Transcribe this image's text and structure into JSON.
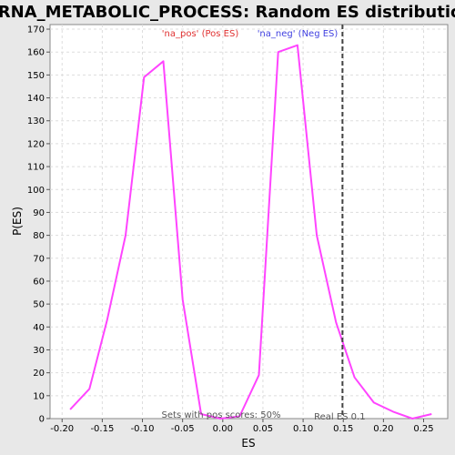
{
  "chart_data": {
    "type": "line",
    "title": "MRNA_METABOLIC_PROCESS: Random ES distribution",
    "xlabel": "ES",
    "ylabel": "P(ES)",
    "xlim": [
      -0.215,
      0.28
    ],
    "ylim": [
      0,
      172
    ],
    "x_ticks": [
      -0.2,
      -0.15,
      -0.1,
      -0.05,
      0.0,
      0.05,
      0.1,
      0.15,
      0.2,
      0.25
    ],
    "x_tick_labels": [
      "-0.20",
      "-0.15",
      "-0.10",
      "-0.05",
      "0.00",
      "0.05",
      "0.10",
      "0.15",
      "0.20",
      "0.25"
    ],
    "y_ticks": [
      0,
      10,
      20,
      30,
      40,
      50,
      60,
      70,
      80,
      90,
      100,
      110,
      120,
      130,
      140,
      150,
      160,
      170
    ],
    "grid": true,
    "series": [
      {
        "color": "#ff44ff",
        "x": [
          -0.19,
          -0.166,
          -0.144,
          -0.121,
          -0.098,
          -0.074,
          -0.05,
          -0.027,
          -0.003,
          0.021,
          0.045,
          0.069,
          0.093,
          0.117,
          0.141,
          0.164,
          0.188,
          0.212,
          0.236,
          0.26
        ],
        "y": [
          4,
          13,
          43,
          80,
          149,
          156,
          52,
          2,
          0,
          1,
          19,
          160,
          163,
          80,
          42,
          18,
          7,
          3,
          0,
          2
        ]
      }
    ],
    "annotations": {
      "pos_label": "'na_pos' (Pos ES)",
      "pos_color": "#e03030",
      "neg_label": "'na_neg' (Neg ES)",
      "neg_color": "#4040e0",
      "sets_text": "Sets with pos scores: 50%",
      "real_es_label": "Real ES 0.1",
      "real_es_value": 0.149
    }
  }
}
